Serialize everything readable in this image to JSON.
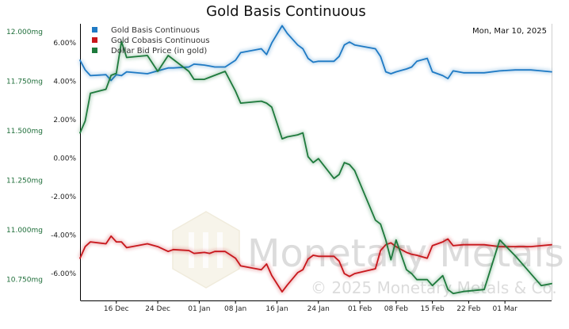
{
  "chart_data": {
    "type": "line",
    "title": "Gold Basis Continuous",
    "date_label": "Mon, Mar 10, 2025",
    "legend_position": "top-left",
    "grid": false,
    "watermark": {
      "name": "Monetary Metals",
      "copyright": "© 2025 Monetary Metals & Co."
    },
    "x_ticks": [
      "16 Dec",
      "24 Dec",
      "01 Jan",
      "08 Jan",
      "16 Jan",
      "24 Jan",
      "01 Feb",
      "08 Feb",
      "15 Feb",
      "22 Feb",
      "01 Mar"
    ],
    "x_range": [
      "2024-12-09",
      "2025-03-10"
    ],
    "y_right": {
      "ticks": [
        "6.00%",
        "4.00%",
        "2.00%",
        "0.00%",
        "-2.00%",
        "-4.00%",
        "-6.00%"
      ],
      "range": [
        -7.4,
        7.0
      ]
    },
    "y_left": {
      "ticks": [
        "12.000mg",
        "11.750mg",
        "11.500mg",
        "11.250mg",
        "11.000mg",
        "10.750mg"
      ],
      "range": [
        10.645,
        12.04
      ]
    },
    "series": [
      {
        "name": "Gold Basis Continuous",
        "color": "#1f7ac4",
        "axis": "right",
        "points": [
          [
            "2024-12-09",
            5.1
          ],
          [
            "2024-12-10",
            4.6
          ],
          [
            "2024-12-11",
            4.3
          ],
          [
            "2024-12-14",
            4.35
          ],
          [
            "2024-12-15",
            4.05
          ],
          [
            "2024-12-16",
            4.35
          ],
          [
            "2024-12-17",
            4.3
          ],
          [
            "2024-12-18",
            4.5
          ],
          [
            "2024-12-22",
            4.4
          ],
          [
            "2024-12-24",
            4.55
          ],
          [
            "2024-12-26",
            4.7
          ],
          [
            "2024-12-27",
            4.7
          ],
          [
            "2024-12-30",
            4.75
          ],
          [
            "2024-12-31",
            4.9
          ],
          [
            "2025-01-02",
            4.85
          ],
          [
            "2025-01-03",
            4.8
          ],
          [
            "2025-01-04",
            4.75
          ],
          [
            "2025-01-06",
            4.75
          ],
          [
            "2025-01-08",
            5.1
          ],
          [
            "2025-01-09",
            5.5
          ],
          [
            "2025-01-13",
            5.7
          ],
          [
            "2025-01-14",
            5.4
          ],
          [
            "2025-01-15",
            6.0
          ],
          [
            "2025-01-17",
            6.9
          ],
          [
            "2025-01-18",
            6.5
          ],
          [
            "2025-01-20",
            5.9
          ],
          [
            "2025-01-21",
            5.7
          ],
          [
            "2025-01-22",
            5.2
          ],
          [
            "2025-01-23",
            5.0
          ],
          [
            "2025-01-24",
            5.05
          ],
          [
            "2025-01-27",
            5.05
          ],
          [
            "2025-01-28",
            5.3
          ],
          [
            "2025-01-29",
            5.9
          ],
          [
            "2025-01-30",
            6.05
          ],
          [
            "2025-01-31",
            5.9
          ],
          [
            "2025-02-04",
            5.7
          ],
          [
            "2025-02-05",
            5.3
          ],
          [
            "2025-02-06",
            4.5
          ],
          [
            "2025-02-07",
            4.4
          ],
          [
            "2025-02-08",
            4.5
          ],
          [
            "2025-02-10",
            4.65
          ],
          [
            "2025-02-11",
            4.75
          ],
          [
            "2025-02-12",
            5.05
          ],
          [
            "2025-02-14",
            5.2
          ],
          [
            "2025-02-15",
            4.5
          ],
          [
            "2025-02-17",
            4.3
          ],
          [
            "2025-02-18",
            4.15
          ],
          [
            "2025-02-19",
            4.55
          ],
          [
            "2025-02-21",
            4.45
          ],
          [
            "2025-02-25",
            4.45
          ],
          [
            "2025-02-28",
            4.55
          ],
          [
            "2025-03-03",
            4.6
          ],
          [
            "2025-03-06",
            4.6
          ],
          [
            "2025-03-08",
            4.55
          ],
          [
            "2025-03-10",
            4.5
          ]
        ]
      },
      {
        "name": "Gold Cobasis Continuous",
        "color": "#c8171c",
        "axis": "right",
        "points": [
          [
            "2024-12-09",
            -5.2
          ],
          [
            "2024-12-10",
            -4.6
          ],
          [
            "2024-12-11",
            -4.35
          ],
          [
            "2024-12-14",
            -4.45
          ],
          [
            "2024-12-15",
            -4.05
          ],
          [
            "2024-12-16",
            -4.35
          ],
          [
            "2024-12-17",
            -4.35
          ],
          [
            "2024-12-18",
            -4.65
          ],
          [
            "2024-12-22",
            -4.45
          ],
          [
            "2024-12-24",
            -4.6
          ],
          [
            "2024-12-26",
            -4.85
          ],
          [
            "2024-12-27",
            -4.75
          ],
          [
            "2024-12-30",
            -4.8
          ],
          [
            "2024-12-31",
            -4.95
          ],
          [
            "2025-01-02",
            -4.9
          ],
          [
            "2025-01-03",
            -4.95
          ],
          [
            "2025-01-04",
            -4.85
          ],
          [
            "2025-01-06",
            -4.85
          ],
          [
            "2025-01-08",
            -5.2
          ],
          [
            "2025-01-09",
            -5.6
          ],
          [
            "2025-01-13",
            -5.8
          ],
          [
            "2025-01-14",
            -5.5
          ],
          [
            "2025-01-15",
            -6.1
          ],
          [
            "2025-01-17",
            -6.95
          ],
          [
            "2025-01-18",
            -6.6
          ],
          [
            "2025-01-20",
            -5.95
          ],
          [
            "2025-01-21",
            -5.8
          ],
          [
            "2025-01-22",
            -5.25
          ],
          [
            "2025-01-23",
            -5.05
          ],
          [
            "2025-01-24",
            -5.1
          ],
          [
            "2025-01-27",
            -5.1
          ],
          [
            "2025-01-28",
            -5.35
          ],
          [
            "2025-01-29",
            -6.0
          ],
          [
            "2025-01-30",
            -6.15
          ],
          [
            "2025-01-31",
            -6.0
          ],
          [
            "2025-02-04",
            -5.75
          ],
          [
            "2025-02-05",
            -4.8
          ],
          [
            "2025-02-06",
            -4.5
          ],
          [
            "2025-02-07",
            -4.4
          ],
          [
            "2025-02-08",
            -4.6
          ],
          [
            "2025-02-10",
            -4.9
          ],
          [
            "2025-02-11",
            -5.0
          ],
          [
            "2025-02-12",
            -5.05
          ],
          [
            "2025-02-14",
            -5.2
          ],
          [
            "2025-02-15",
            -4.55
          ],
          [
            "2025-02-17",
            -4.35
          ],
          [
            "2025-02-18",
            -4.2
          ],
          [
            "2025-02-19",
            -4.55
          ],
          [
            "2025-02-21",
            -4.5
          ],
          [
            "2025-02-25",
            -4.5
          ],
          [
            "2025-02-28",
            -4.6
          ],
          [
            "2025-03-03",
            -4.6
          ],
          [
            "2025-03-06",
            -4.6
          ],
          [
            "2025-03-08",
            -4.55
          ],
          [
            "2025-03-10",
            -4.5
          ]
        ]
      },
      {
        "name": "Dollar Bid Price (in gold)",
        "color": "#1e7a3c",
        "axis": "left",
        "points": [
          [
            "2024-12-09",
            11.49
          ],
          [
            "2024-12-10",
            11.55
          ],
          [
            "2024-12-11",
            11.69
          ],
          [
            "2024-12-14",
            11.71
          ],
          [
            "2024-12-15",
            11.78
          ],
          [
            "2024-12-16",
            11.79
          ],
          [
            "2024-12-17",
            11.95
          ],
          [
            "2024-12-18",
            11.87
          ],
          [
            "2024-12-22",
            11.88
          ],
          [
            "2024-12-24",
            11.8
          ],
          [
            "2024-12-26",
            11.88
          ],
          [
            "2024-12-27",
            11.86
          ],
          [
            "2024-12-30",
            11.8
          ],
          [
            "2024-12-31",
            11.76
          ],
          [
            "2025-01-02",
            11.76
          ],
          [
            "2025-01-03",
            11.77
          ],
          [
            "2025-01-04",
            11.78
          ],
          [
            "2025-01-06",
            11.8
          ],
          [
            "2025-01-08",
            11.7
          ],
          [
            "2025-01-09",
            11.64
          ],
          [
            "2025-01-13",
            11.65
          ],
          [
            "2025-01-14",
            11.64
          ],
          [
            "2025-01-15",
            11.62
          ],
          [
            "2025-01-17",
            11.46
          ],
          [
            "2025-01-18",
            11.47
          ],
          [
            "2025-01-20",
            11.48
          ],
          [
            "2025-01-21",
            11.49
          ],
          [
            "2025-01-22",
            11.37
          ],
          [
            "2025-01-23",
            11.34
          ],
          [
            "2025-01-24",
            11.36
          ],
          [
            "2025-01-27",
            11.26
          ],
          [
            "2025-01-28",
            11.28
          ],
          [
            "2025-01-29",
            11.34
          ],
          [
            "2025-01-30",
            11.33
          ],
          [
            "2025-01-31",
            11.3
          ],
          [
            "2025-02-04",
            11.05
          ],
          [
            "2025-02-05",
            11.03
          ],
          [
            "2025-02-06",
            10.95
          ],
          [
            "2025-02-07",
            10.85
          ],
          [
            "2025-02-08",
            10.95
          ],
          [
            "2025-02-10",
            10.8
          ],
          [
            "2025-02-11",
            10.78
          ],
          [
            "2025-02-12",
            10.75
          ],
          [
            "2025-02-14",
            10.75
          ],
          [
            "2025-02-15",
            10.72
          ],
          [
            "2025-02-17",
            10.77
          ],
          [
            "2025-02-18",
            10.7
          ],
          [
            "2025-02-19",
            10.68
          ],
          [
            "2025-02-21",
            10.69
          ],
          [
            "2025-02-25",
            10.7
          ],
          [
            "2025-02-28",
            10.95
          ],
          [
            "2025-03-03",
            10.87
          ],
          [
            "2025-03-06",
            10.78
          ],
          [
            "2025-03-08",
            10.72
          ],
          [
            "2025-03-10",
            10.73
          ]
        ]
      }
    ]
  }
}
